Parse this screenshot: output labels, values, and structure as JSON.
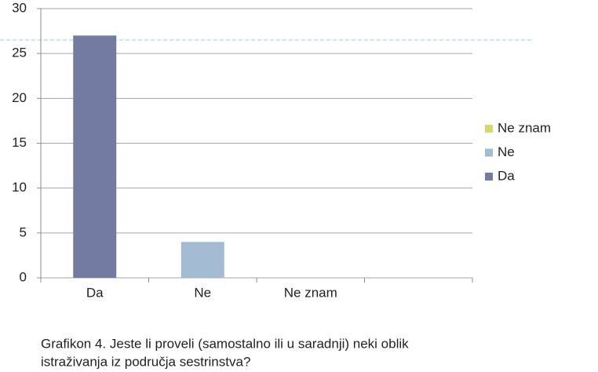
{
  "chart_data": {
    "type": "bar",
    "categories": [
      "Da",
      "Ne",
      "Ne znam",
      null
    ],
    "values": [
      27,
      4,
      0,
      null
    ],
    "colors": [
      "#737ba3",
      "#a3bbd3",
      "#d6d86e",
      null
    ],
    "ylim": [
      0,
      30
    ],
    "yticks": [
      0,
      5,
      10,
      15,
      20,
      25,
      30
    ],
    "grid": true,
    "legend": "right",
    "caption": [
      "Grafikon 4. Jeste li proveli (samostalno ili u saradnji) neki oblik",
      "istraživanja iz područja sestrinstva?"
    ]
  }
}
